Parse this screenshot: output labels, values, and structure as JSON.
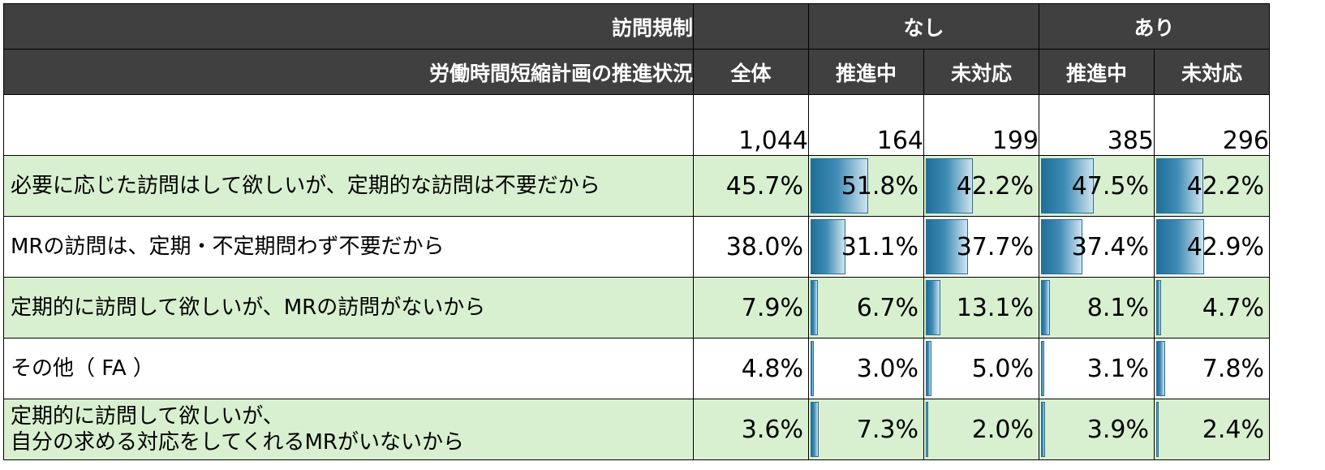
{
  "chart_data": {
    "type": "table",
    "header_row1": {
      "label": "訪問規制",
      "group_none": "なし",
      "group_yes": "あり"
    },
    "header_row2": {
      "label": "労働時間短縮計画の推進状況",
      "columns": [
        "全体",
        "推進中",
        "未対応",
        "推進中",
        "未対応"
      ]
    },
    "n_values": [
      "1,044",
      "164",
      "199",
      "385",
      "296"
    ],
    "bar_scale_max": 100,
    "rows": [
      {
        "label_lines": [
          "必要に応じた訪問はして欲しいが、定期的な訪問は不要だから"
        ],
        "display": [
          "45.7%",
          "51.8%",
          "42.2%",
          "47.5%",
          "42.2%"
        ],
        "values": [
          45.7,
          51.8,
          42.2,
          47.5,
          42.2
        ]
      },
      {
        "label_lines": [
          "MRの訪問は、定期・不定期問わず不要だから"
        ],
        "display": [
          "38.0%",
          "31.1%",
          "37.7%",
          "37.4%",
          "42.9%"
        ],
        "values": [
          38.0,
          31.1,
          37.7,
          37.4,
          42.9
        ]
      },
      {
        "label_lines": [
          "定期的に訪問して欲しいが、MRの訪問がないから"
        ],
        "display": [
          "7.9%",
          "6.7%",
          "13.1%",
          "8.1%",
          "4.7%"
        ],
        "values": [
          7.9,
          6.7,
          13.1,
          8.1,
          4.7
        ]
      },
      {
        "label_lines": [
          "その他（ FA ）"
        ],
        "display": [
          "4.8%",
          "3.0%",
          "5.0%",
          "3.1%",
          "7.8%"
        ],
        "values": [
          4.8,
          3.0,
          5.0,
          3.1,
          7.8
        ]
      },
      {
        "label_lines": [
          "定期的に訪問して欲しいが、",
          "自分の求める対応をしてくれるMRがいないから"
        ],
        "display": [
          "3.6%",
          "7.3%",
          "2.0%",
          "3.9%",
          "2.4%"
        ],
        "values": [
          3.6,
          7.3,
          2.0,
          3.9,
          2.4
        ]
      }
    ],
    "colors": {
      "header_bg": "#404040",
      "header_text": "#ffffff",
      "row_green": "#d8f0cf",
      "bar_dark": "#1f6f9a",
      "bar_light": "#cfe3ef"
    }
  }
}
